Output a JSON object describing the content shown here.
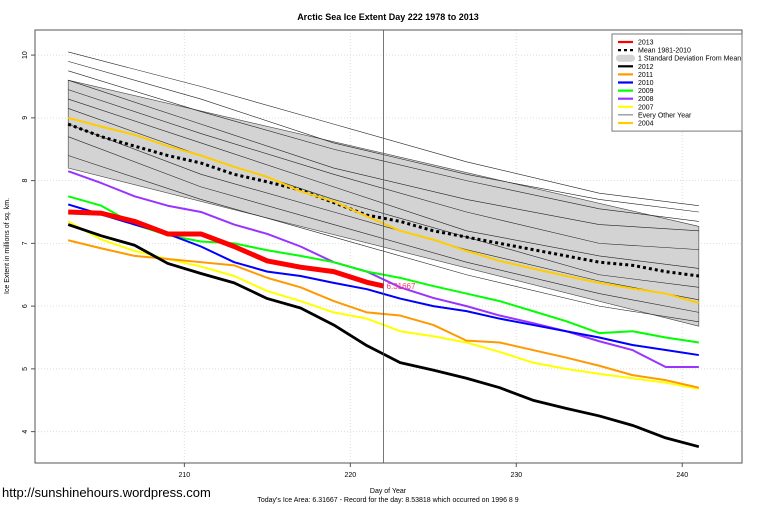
{
  "watermark": "http://sunshinehours.wordpress.com",
  "chart_data": {
    "type": "line",
    "title": "Arctic Sea Ice Extent Day 222 1978 to 2013",
    "xlabel": "Day of Year",
    "ylabel": "Ice Extent in millions of sq. km.",
    "subtitle": "Today's Ice Area: 6.31667  - Record for the day: 8.53818 which occurred on 1996 8 9",
    "xlim": [
      201,
      243.6
    ],
    "ylim": [
      3.5,
      10.4
    ],
    "xticks": [
      210,
      220,
      230,
      240
    ],
    "yticks": [
      4,
      5,
      6,
      7,
      8,
      9,
      10
    ],
    "grid": true,
    "legend_position": "top-right",
    "current_day": 222,
    "annotation": {
      "x": 222,
      "y": 6.31667,
      "text": "6.31667",
      "color": "#ff3366"
    },
    "legend": [
      {
        "label": "2013",
        "color": "#ff0000",
        "style": "thick"
      },
      {
        "label": "Mean 1981-2010",
        "color": "#000000",
        "style": "dotted"
      },
      {
        "label": "1 Standard Deviation From Mean",
        "color": "#d3d3d3",
        "style": "band"
      },
      {
        "label": "2012",
        "color": "#000000",
        "style": "solid"
      },
      {
        "label": "2011",
        "color": "#ff9900",
        "style": "solid"
      },
      {
        "label": "2010",
        "color": "#0000ff",
        "style": "solid"
      },
      {
        "label": "2009",
        "color": "#00ff00",
        "style": "solid"
      },
      {
        "label": "2008",
        "color": "#9933ff",
        "style": "solid"
      },
      {
        "label": "2007",
        "color": "#ffff00",
        "style": "solid"
      },
      {
        "label": "Every Other Year",
        "color": "#333333",
        "style": "thin"
      },
      {
        "label": "2004",
        "color": "#ffcc00",
        "style": "solid"
      }
    ],
    "x": [
      203,
      205,
      207,
      209,
      211,
      213,
      215,
      217,
      219,
      221,
      223,
      225,
      227,
      229,
      231,
      233,
      235,
      237,
      239,
      241
    ],
    "sd_band": {
      "x": [
        203,
        241
      ],
      "upper": [
        9.6,
        7.27
      ],
      "lower": [
        8.2,
        5.68
      ]
    },
    "every_other_year": {
      "x": [
        203,
        211,
        219,
        227,
        235,
        241
      ],
      "lines": [
        [
          10.05,
          9.5,
          8.9,
          8.3,
          7.8,
          7.6
        ],
        [
          9.9,
          9.3,
          8.6,
          8.1,
          7.7,
          7.5
        ],
        [
          9.75,
          9.1,
          8.5,
          8.0,
          7.55,
          7.35
        ],
        [
          9.6,
          8.9,
          8.2,
          7.7,
          7.3,
          7.2
        ],
        [
          9.45,
          8.75,
          8.1,
          7.5,
          7.0,
          6.9
        ],
        [
          9.3,
          8.6,
          7.9,
          7.2,
          6.8,
          6.6
        ],
        [
          9.15,
          8.4,
          7.7,
          7.1,
          6.5,
          6.3
        ],
        [
          8.9,
          8.1,
          7.5,
          6.9,
          6.4,
          6.1
        ],
        [
          8.7,
          7.9,
          7.3,
          6.7,
          6.2,
          5.9
        ],
        [
          8.4,
          7.7,
          7.1,
          6.5,
          6.0,
          5.75
        ]
      ]
    },
    "series": [
      {
        "name": "Mean 1981-2010",
        "color": "#000000",
        "style": "dotted",
        "values": [
          8.9,
          8.7,
          8.55,
          8.4,
          8.28,
          8.1,
          7.98,
          7.85,
          7.65,
          7.45,
          7.35,
          7.2,
          7.1,
          7.0,
          6.9,
          6.8,
          6.7,
          6.65,
          6.55,
          6.48
        ]
      },
      {
        "name": "2004",
        "color": "#ffcc00",
        "style": "solid",
        "values": [
          9.0,
          8.86,
          8.73,
          8.55,
          8.4,
          8.22,
          8.06,
          7.83,
          7.67,
          7.43,
          7.2,
          7.06,
          6.88,
          6.72,
          6.6,
          6.48,
          6.37,
          6.28,
          6.2,
          6.05
        ]
      },
      {
        "name": "2007",
        "color": "#ffff00",
        "style": "solid",
        "values": [
          7.35,
          7.06,
          6.88,
          6.75,
          6.63,
          6.48,
          6.24,
          6.08,
          5.9,
          5.8,
          5.6,
          5.52,
          5.42,
          5.27,
          5.1,
          5.0,
          4.92,
          4.85,
          4.78,
          4.68
        ]
      },
      {
        "name": "2008",
        "color": "#9933ff",
        "style": "solid",
        "values": [
          8.15,
          7.96,
          7.75,
          7.6,
          7.5,
          7.3,
          7.15,
          6.95,
          6.7,
          6.55,
          6.3,
          6.13,
          6.0,
          5.85,
          5.73,
          5.6,
          5.44,
          5.3,
          5.03,
          5.03
        ]
      },
      {
        "name": "2009",
        "color": "#00ff00",
        "style": "solid",
        "values": [
          7.75,
          7.6,
          7.3,
          7.13,
          7.03,
          7.0,
          6.89,
          6.8,
          6.7,
          6.55,
          6.45,
          6.32,
          6.2,
          6.08,
          5.92,
          5.76,
          5.57,
          5.6,
          5.5,
          5.42
        ]
      },
      {
        "name": "2010",
        "color": "#0000ff",
        "style": "solid",
        "values": [
          7.62,
          7.46,
          7.3,
          7.15,
          6.95,
          6.7,
          6.55,
          6.48,
          6.37,
          6.27,
          6.12,
          6.0,
          5.92,
          5.8,
          5.7,
          5.6,
          5.5,
          5.38,
          5.3,
          5.22
        ]
      },
      {
        "name": "2011",
        "color": "#ff9900",
        "style": "solid",
        "values": [
          7.05,
          6.92,
          6.8,
          6.75,
          6.7,
          6.65,
          6.45,
          6.3,
          6.08,
          5.9,
          5.85,
          5.7,
          5.45,
          5.42,
          5.3,
          5.18,
          5.05,
          4.9,
          4.82,
          4.7
        ]
      },
      {
        "name": "2012",
        "color": "#000000",
        "style": "solid",
        "values": [
          7.3,
          7.12,
          6.97,
          6.68,
          6.52,
          6.37,
          6.12,
          5.97,
          5.7,
          5.37,
          5.1,
          4.98,
          4.85,
          4.7,
          4.5,
          4.37,
          4.25,
          4.1,
          3.9,
          3.76
        ]
      },
      {
        "name": "2013",
        "color": "#ff0000",
        "style": "thick",
        "x": [
          203,
          205,
          207,
          209,
          211,
          213,
          215,
          217,
          219,
          221,
          222
        ],
        "values": [
          7.5,
          7.48,
          7.35,
          7.15,
          7.15,
          6.95,
          6.72,
          6.62,
          6.55,
          6.38,
          6.32
        ]
      }
    ]
  }
}
